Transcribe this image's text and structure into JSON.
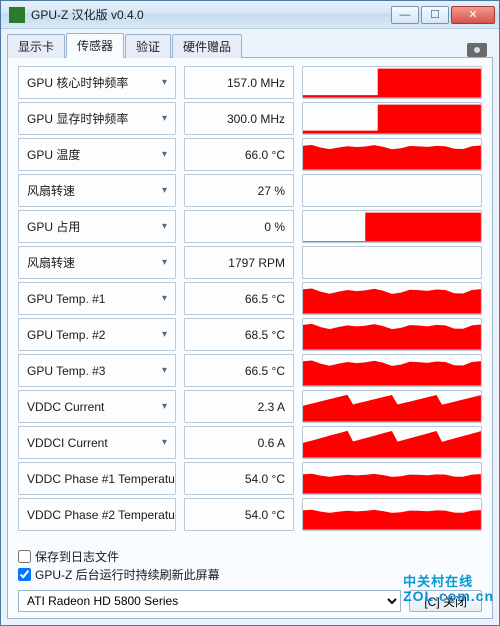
{
  "window": {
    "title": "GPU-Z 汉化版 v0.4.0",
    "icon_color": "#2b7a2b"
  },
  "tabs": {
    "items": [
      "显示卡",
      "传感器",
      "验证",
      "硬件赠品"
    ],
    "active_index": 1
  },
  "sensors": [
    {
      "label": "GPU 核心时钟频率",
      "value": "157.0 MHz",
      "graph": {
        "type": "step",
        "left_h": 8,
        "right_h": 95,
        "split": 42
      }
    },
    {
      "label": "GPU 显存时钟频率",
      "value": "300.0 MHz",
      "graph": {
        "type": "step",
        "left_h": 10,
        "right_h": 95,
        "split": 42
      }
    },
    {
      "label": "GPU 温度",
      "value": "66.0 °C",
      "graph": {
        "type": "wavy",
        "base_h": 74,
        "var": 8
      }
    },
    {
      "label": "风扇转速",
      "value": "27 %",
      "graph": {
        "type": "empty"
      }
    },
    {
      "label": "GPU 占用",
      "value": "0 %",
      "graph": {
        "type": "step",
        "left_h": 2,
        "right_h": 95,
        "split": 35
      }
    },
    {
      "label": "风扇转速",
      "value": "1797 RPM",
      "graph": {
        "type": "empty"
      }
    },
    {
      "label": "GPU Temp. #1",
      "value": "66.5 °C",
      "graph": {
        "type": "wavy",
        "base_h": 74,
        "var": 10
      }
    },
    {
      "label": "GPU Temp. #2",
      "value": "68.5 °C",
      "graph": {
        "type": "wavy",
        "base_h": 76,
        "var": 10
      }
    },
    {
      "label": "GPU Temp. #3",
      "value": "66.5 °C",
      "graph": {
        "type": "wavy",
        "base_h": 74,
        "var": 10
      }
    },
    {
      "label": "VDDC Current",
      "value": "2.3 A",
      "graph": {
        "type": "noisy",
        "base_h": 70,
        "var": 18
      }
    },
    {
      "label": "VDDCI Current",
      "value": "0.6 A",
      "graph": {
        "type": "noisy",
        "base_h": 68,
        "var": 20
      }
    },
    {
      "label": "VDDC Phase #1 Temperatu",
      "value": "54.0 °C",
      "graph": {
        "type": "wavy",
        "base_h": 60,
        "var": 6
      }
    },
    {
      "label": "VDDC Phase #2 Temperatu",
      "value": "54.0 °C",
      "graph": {
        "type": "wavy",
        "base_h": 60,
        "var": 6
      }
    }
  ],
  "graph_color": "#ff0000",
  "box_border": "#bac9da",
  "box_bg": "#fcfdff",
  "checks": {
    "save_log": {
      "label": "保存到日志文件",
      "checked": false
    },
    "bg_refresh": {
      "label": "GPU-Z 后台运行时持续刷新此屏幕",
      "checked": true
    }
  },
  "bottom": {
    "selected_gpu": "ATI Radeon HD 5800 Series",
    "close_label": "[C] 关闭"
  },
  "watermark": {
    "line1": "中关村在线",
    "line2": "ZOL.com.cn"
  }
}
